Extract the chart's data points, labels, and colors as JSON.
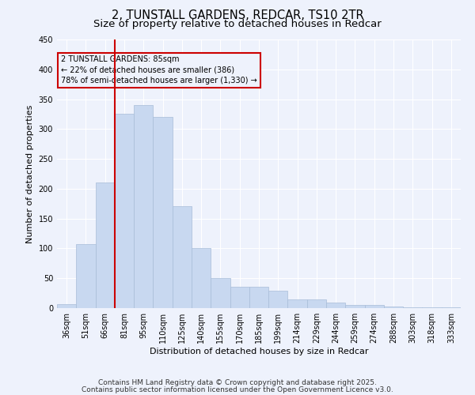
{
  "title_line1": "2, TUNSTALL GARDENS, REDCAR, TS10 2TR",
  "title_line2": "Size of property relative to detached houses in Redcar",
  "xlabel": "Distribution of detached houses by size in Redcar",
  "ylabel": "Number of detached properties",
  "categories": [
    "36sqm",
    "51sqm",
    "66sqm",
    "81sqm",
    "95sqm",
    "110sqm",
    "125sqm",
    "140sqm",
    "155sqm",
    "170sqm",
    "185sqm",
    "199sqm",
    "214sqm",
    "229sqm",
    "244sqm",
    "259sqm",
    "274sqm",
    "288sqm",
    "303sqm",
    "318sqm",
    "333sqm"
  ],
  "values": [
    6,
    107,
    211,
    325,
    340,
    320,
    171,
    100,
    50,
    36,
    36,
    29,
    15,
    15,
    9,
    5,
    5,
    2,
    1,
    1,
    1
  ],
  "bar_color": "#c8d8f0",
  "bar_edge_color": "#a8bcd8",
  "vline_color": "#cc0000",
  "vline_x_index": 3,
  "ylim": [
    0,
    450
  ],
  "yticks": [
    0,
    50,
    100,
    150,
    200,
    250,
    300,
    350,
    400,
    450
  ],
  "annotation_text_line1": "2 TUNSTALL GARDENS: 85sqm",
  "annotation_text_line2": "← 22% of detached houses are smaller (386)",
  "annotation_text_line3": "78% of semi-detached houses are larger (1,330) →",
  "annotation_box_color": "#cc0000",
  "footer_line1": "Contains HM Land Registry data © Crown copyright and database right 2025.",
  "footer_line2": "Contains public sector information licensed under the Open Government Licence v3.0.",
  "bg_color": "#eef2fc",
  "grid_color": "#ffffff",
  "title_fontsize": 10.5,
  "subtitle_fontsize": 9.5,
  "axis_label_fontsize": 8,
  "tick_fontsize": 7,
  "footer_fontsize": 6.5
}
